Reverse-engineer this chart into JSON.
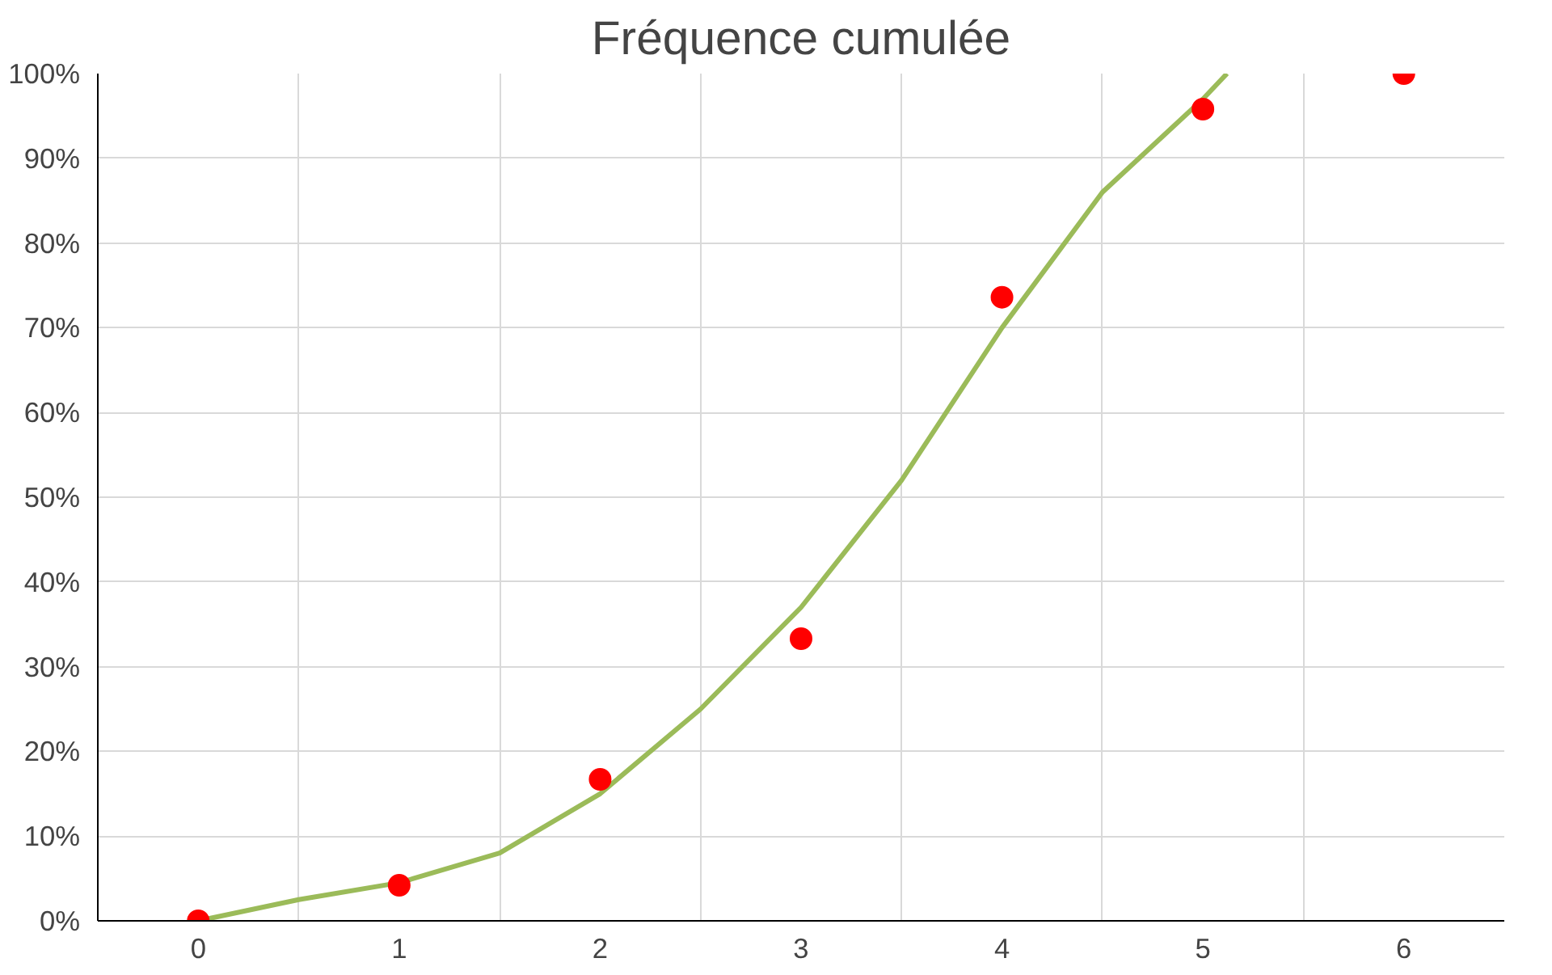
{
  "chart_data": {
    "type": "scatter",
    "title": "Fréquence cumulée",
    "xlim": [
      -0.5,
      6.5
    ],
    "xticks": [
      0,
      1,
      2,
      3,
      4,
      5,
      6
    ],
    "ylim": [
      0,
      100
    ],
    "yticks": [
      {
        "value": 0,
        "label": "0%"
      },
      {
        "value": 10,
        "label": "10%"
      },
      {
        "value": 20,
        "label": "20%"
      },
      {
        "value": 30,
        "label": "30%"
      },
      {
        "value": 40,
        "label": "40%"
      },
      {
        "value": 50,
        "label": "50%"
      },
      {
        "value": 60,
        "label": "60%"
      },
      {
        "value": 70,
        "label": "70%"
      },
      {
        "value": 80,
        "label": "80%"
      },
      {
        "value": 90,
        "label": "90%"
      },
      {
        "value": 100,
        "label": "100%"
      }
    ],
    "grid": true,
    "marker": "circle",
    "series": [
      {
        "type": "line",
        "color": "#9bbb59",
        "marker": "none",
        "line_style": "solid",
        "x": [
          0,
          0.5,
          1,
          1.5,
          2,
          2.5,
          3,
          3.5,
          4,
          4.5,
          5,
          5.12
        ],
        "values": [
          0,
          2.5,
          4.5,
          8,
          15,
          25,
          37,
          52,
          70,
          86,
          97,
          100
        ]
      },
      {
        "color": "#ff0000",
        "x": [
          0,
          1,
          2,
          3,
          4,
          5,
          6
        ],
        "values": [
          0,
          4.2,
          16.7,
          33.3,
          73.6,
          95.8,
          100
        ]
      }
    ]
  }
}
